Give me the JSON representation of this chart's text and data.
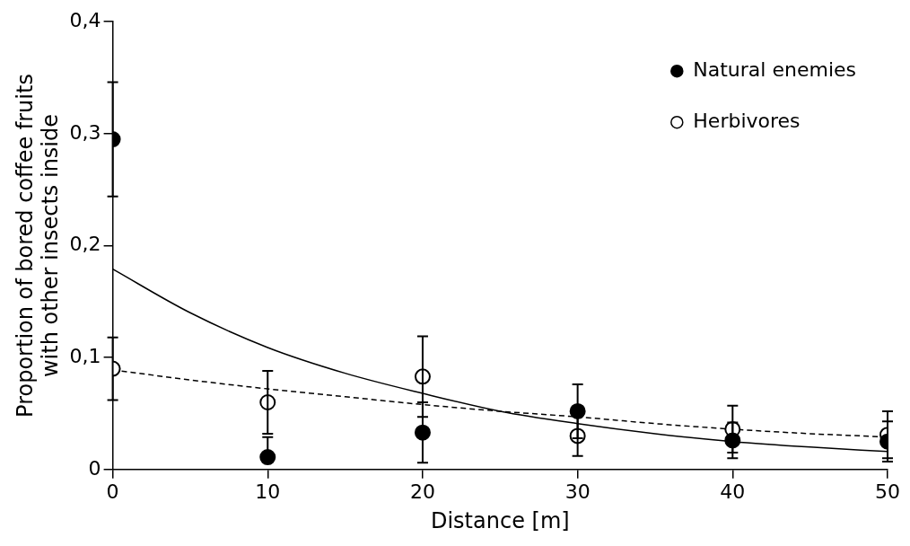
{
  "chart_data": {
    "type": "scatter",
    "xlabel": "Distance [m]",
    "ylabel": "Proportion of bored coffee fruits\nwith other insects inside",
    "xlim": [
      0,
      50
    ],
    "xticks": [
      0,
      10,
      20,
      30,
      40,
      50
    ],
    "ylim": [
      0,
      0.4
    ],
    "yticks": [
      0,
      {
        "value": 0.1,
        "label": "0,1"
      },
      {
        "value": 0.2,
        "label": "0,2"
      },
      {
        "value": 0.3,
        "label": "0,3"
      },
      {
        "value": 0.4,
        "label": "0,4"
      }
    ],
    "grid": false,
    "legend": "top right",
    "series": [
      {
        "name": "Natural enemies",
        "color": "#000000",
        "marker": "circle",
        "x": [
          0,
          10,
          20,
          30,
          40,
          50
        ],
        "values": [
          0.295,
          0.011,
          0.033,
          0.052,
          0.026,
          0.025
        ],
        "errors": [
          0.051,
          [
            0.011,
            0.029
          ],
          0.027,
          0.024,
          0.016,
          0.018
        ]
      },
      {
        "name": "Herbivores",
        "color": "#000000",
        "marker": "circle",
        "x": [
          0,
          10,
          20,
          30,
          40,
          50
        ],
        "values": [
          0.09,
          0.06,
          0.083,
          0.03,
          0.036,
          0.031
        ],
        "errors": [
          0.028,
          0.028,
          0.036,
          0.018,
          0.021,
          0.021
        ]
      },
      {
        "type": "line",
        "color": "#000000",
        "line_style": "solid",
        "marker": "none",
        "x": [
          0,
          5,
          10,
          15,
          20,
          25,
          30,
          35,
          40,
          45,
          50
        ],
        "values": [
          0.179,
          0.14,
          0.109,
          0.086,
          0.068,
          0.052,
          0.041,
          0.032,
          0.025,
          0.02,
          0.016
        ]
      },
      {
        "type": "line",
        "color": "#000000",
        "line_style": "dashed",
        "marker": "none",
        "x": [
          0,
          5,
          10,
          15,
          20,
          25,
          30,
          35,
          40,
          45,
          50
        ],
        "values": [
          0.089,
          0.08,
          0.072,
          0.065,
          0.058,
          0.052,
          0.047,
          0.041,
          0.036,
          0.032,
          0.029
        ]
      }
    ]
  }
}
